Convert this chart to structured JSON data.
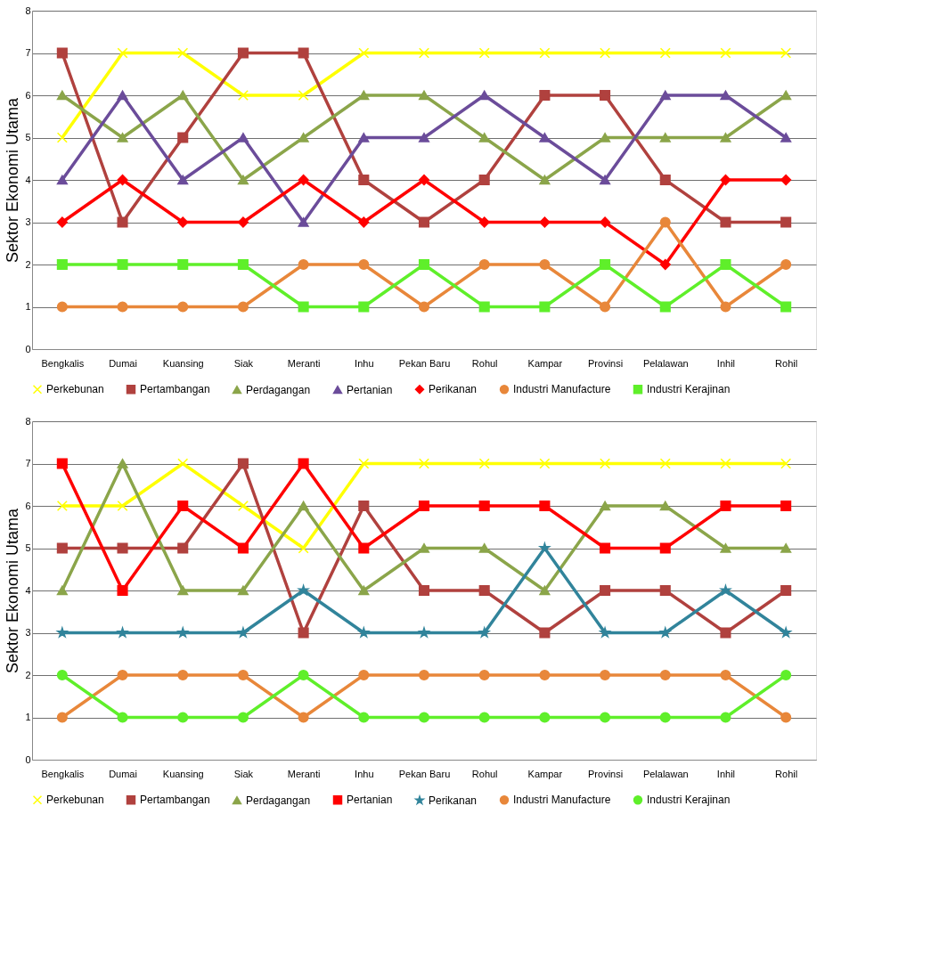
{
  "chart_data": [
    {
      "type": "line",
      "ylabel": "Sektor Ekonomi Utama",
      "categories": [
        "Bengkalis",
        "Dumai",
        "Kuansing",
        "Siak",
        "Meranti",
        "Inhu",
        "Pekan Baru",
        "Rohul",
        "Kampar",
        "Provinsi",
        "Pelalawan",
        "Inhil",
        "Rohil"
      ],
      "ylim": [
        0,
        8
      ],
      "yticks": [
        0,
        1,
        2,
        3,
        4,
        5,
        6,
        7,
        8
      ],
      "grid": "y",
      "legend": "bottom",
      "line_style": "solid",
      "series": [
        {
          "name": "Perkebunan",
          "color": "#ffff00",
          "marker": "cross",
          "values": [
            5,
            7,
            7,
            6,
            6,
            7,
            7,
            7,
            7,
            7,
            7,
            7,
            7
          ]
        },
        {
          "name": "Pertambangan",
          "color": "#b0413e",
          "marker": "square",
          "values": [
            7,
            3,
            5,
            7,
            7,
            4,
            3,
            4,
            6,
            6,
            4,
            3,
            3
          ]
        },
        {
          "name": "Perdagangan",
          "color": "#8ba54a",
          "marker": "triangle",
          "values": [
            6,
            5,
            6,
            4,
            5,
            6,
            6,
            5,
            4,
            5,
            5,
            5,
            6
          ]
        },
        {
          "name": "Pertanian",
          "color": "#6b4c9a",
          "marker": "triangle",
          "values": [
            4,
            6,
            4,
            5,
            3,
            5,
            5,
            6,
            5,
            4,
            6,
            6,
            5
          ]
        },
        {
          "name": "Perikanan",
          "color": "#ff0000",
          "marker": "diamond",
          "values": [
            3,
            4,
            3,
            3,
            4,
            3,
            4,
            3,
            3,
            3,
            2,
            4,
            4
          ]
        },
        {
          "name": "Industri Manufacture",
          "color": "#e8873a",
          "marker": "circle",
          "values": [
            1,
            1,
            1,
            1,
            2,
            2,
            1,
            2,
            2,
            1,
            3,
            1,
            2
          ]
        },
        {
          "name": "Industri Kerajinan",
          "color": "#5fef2a",
          "marker": "square",
          "values": [
            2,
            2,
            2,
            2,
            1,
            1,
            2,
            1,
            1,
            2,
            1,
            2,
            1
          ]
        }
      ]
    },
    {
      "type": "line",
      "ylabel": "Sektor Ekonomi Utama",
      "categories": [
        "Bengkalis",
        "Dumai",
        "Kuansing",
        "Siak",
        "Meranti",
        "Inhu",
        "Pekan Baru",
        "Rohul",
        "Kampar",
        "Provinsi",
        "Pelalawan",
        "Inhil",
        "Rohil"
      ],
      "ylim": [
        0,
        8
      ],
      "yticks": [
        0,
        1,
        2,
        3,
        4,
        5,
        6,
        7,
        8
      ],
      "grid": "y",
      "legend": "bottom",
      "line_style": "solid",
      "series": [
        {
          "name": "Perkebunan",
          "color": "#ffff00",
          "marker": "cross",
          "values": [
            6,
            6,
            7,
            6,
            5,
            7,
            7,
            7,
            7,
            7,
            7,
            7,
            7
          ]
        },
        {
          "name": "Pertambangan",
          "color": "#b0413e",
          "marker": "square",
          "values": [
            5,
            5,
            5,
            7,
            3,
            6,
            4,
            4,
            3,
            4,
            4,
            3,
            4
          ]
        },
        {
          "name": "Perdagangan",
          "color": "#8ba54a",
          "marker": "triangle",
          "values": [
            4,
            7,
            4,
            4,
            6,
            4,
            5,
            5,
            4,
            6,
            6,
            5,
            5
          ]
        },
        {
          "name": "Pertanian",
          "color": "#ff0000",
          "marker": "square",
          "values": [
            7,
            4,
            6,
            5,
            7,
            5,
            6,
            6,
            6,
            5,
            5,
            6,
            6
          ]
        },
        {
          "name": "Perikanan",
          "color": "#31849b",
          "marker": "star",
          "values": [
            3,
            3,
            3,
            3,
            4,
            3,
            3,
            3,
            5,
            3,
            3,
            4,
            3
          ]
        },
        {
          "name": "Industri Manufacture",
          "color": "#e8873a",
          "marker": "circle",
          "values": [
            1,
            2,
            2,
            2,
            1,
            2,
            2,
            2,
            2,
            2,
            2,
            2,
            1
          ]
        },
        {
          "name": "Industri Kerajinan",
          "color": "#5fef2a",
          "marker": "circle",
          "values": [
            2,
            1,
            1,
            1,
            2,
            1,
            1,
            1,
            1,
            1,
            1,
            1,
            2
          ]
        }
      ]
    }
  ]
}
